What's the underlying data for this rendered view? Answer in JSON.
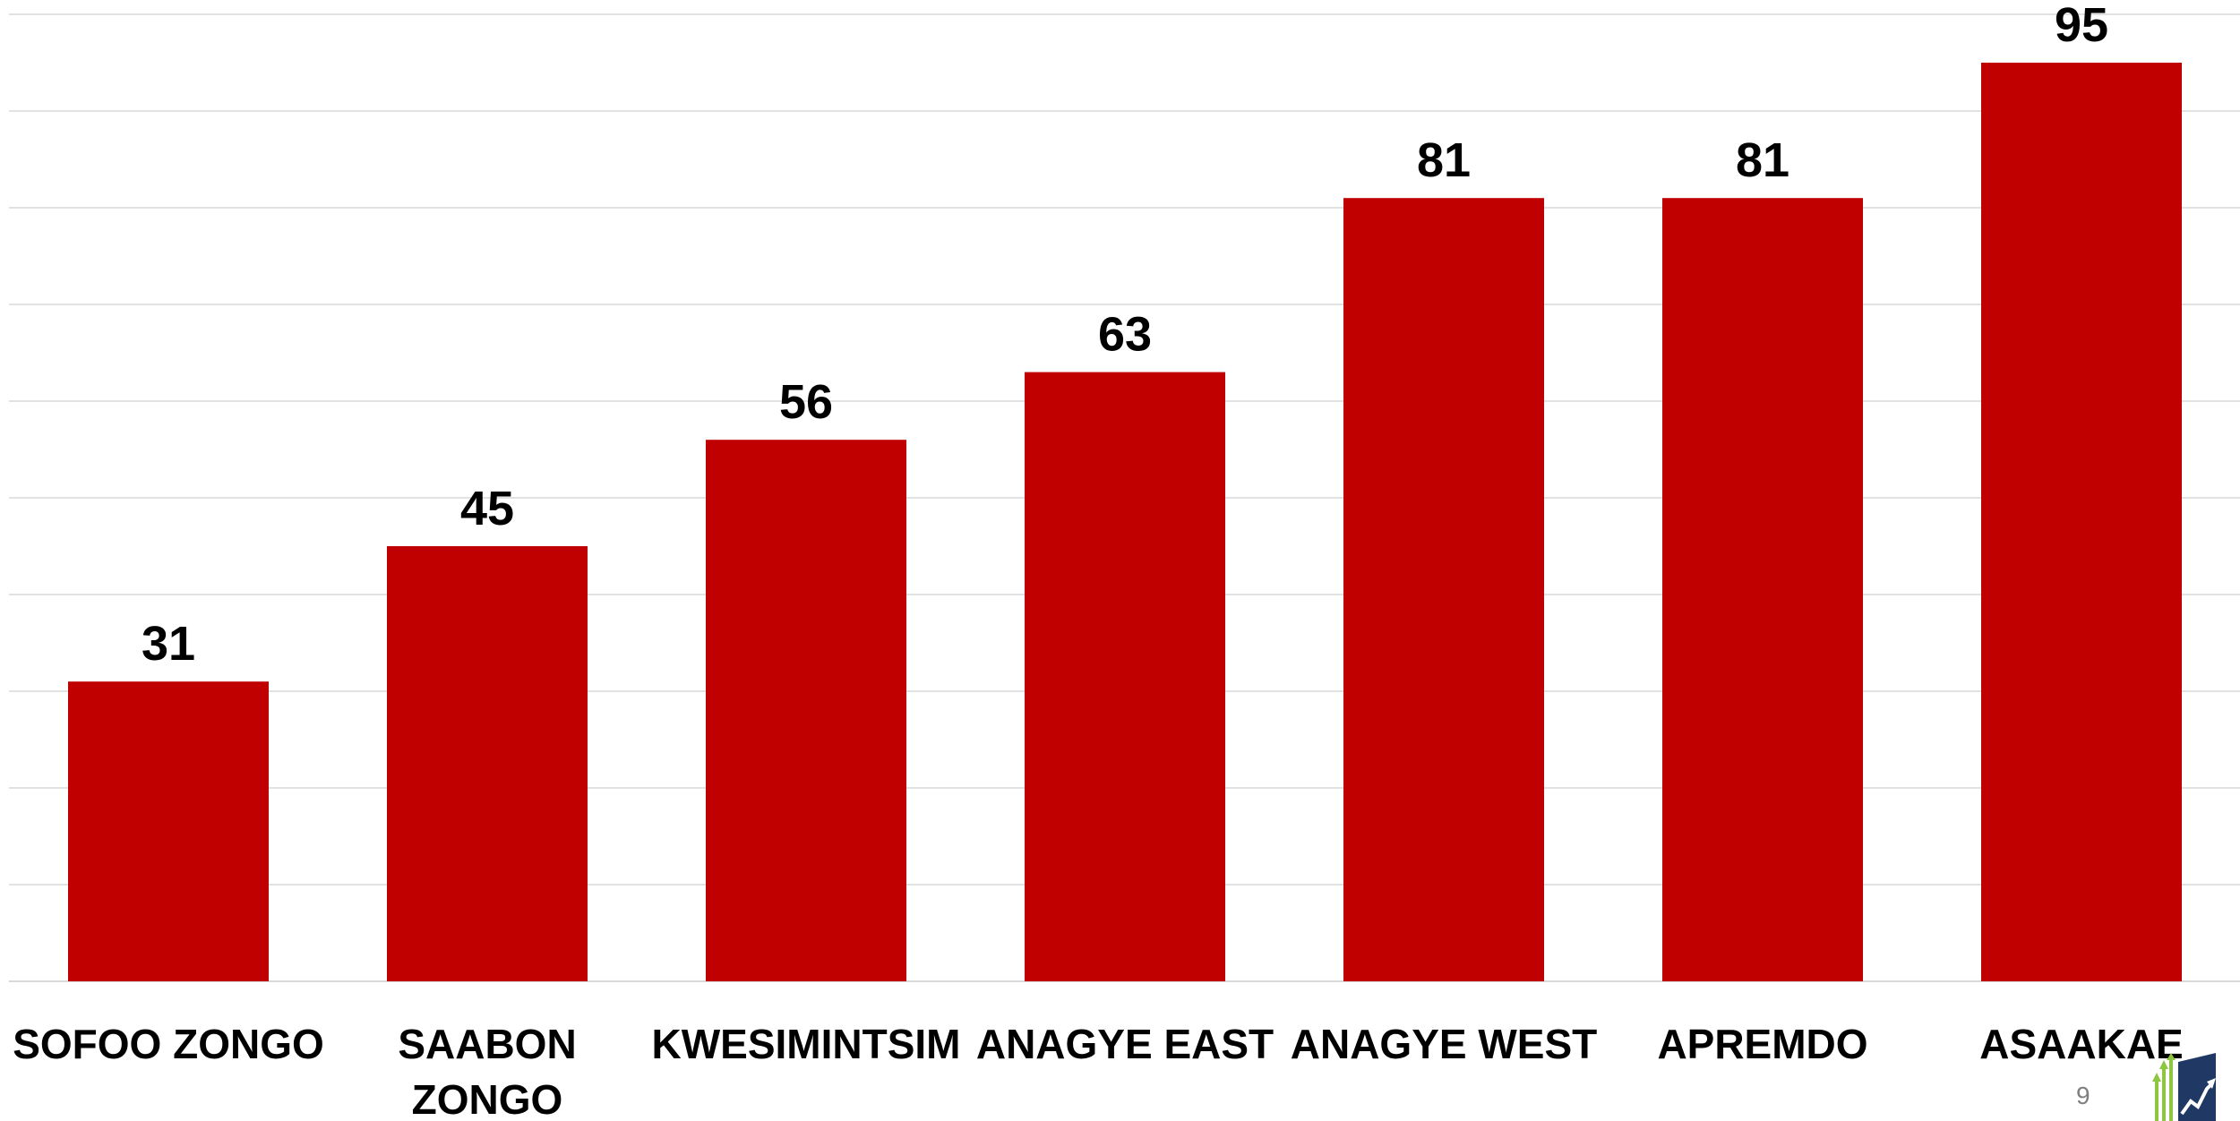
{
  "chart_data": {
    "type": "bar",
    "categories": [
      "SOFOO ZONGO",
      "SAABON ZONGO",
      "KWESIMINTSIM",
      "ANAGYE EAST",
      "ANAGYE WEST",
      "APREMDO",
      "ASAAKAE"
    ],
    "values": [
      31,
      45,
      56,
      63,
      81,
      81,
      95
    ],
    "title": "",
    "xlabel": "",
    "ylabel": "",
    "ylim": [
      0,
      100
    ],
    "grid": true,
    "data_labels": true,
    "legend": "none",
    "bar_color": "#c00000",
    "grid_color": "#d9d9d9"
  },
  "footer": {
    "page_number": "9",
    "logo_icon": "growth-bars-chart-logo-icon"
  },
  "colors": {
    "logo_green": "#8dc63f",
    "logo_navy": "#1f3864"
  }
}
